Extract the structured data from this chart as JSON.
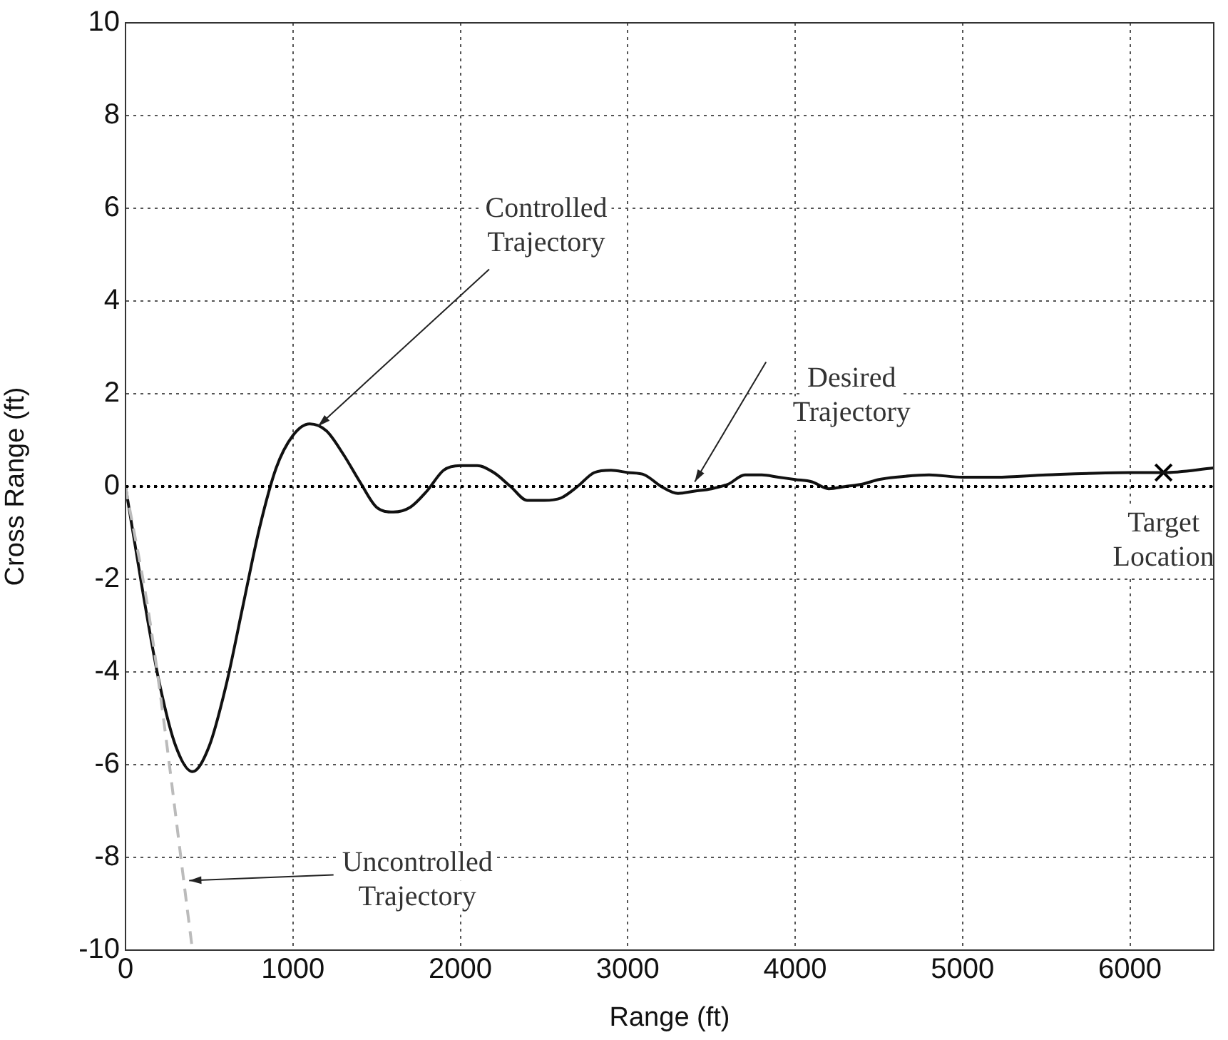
{
  "chart_data": {
    "type": "line",
    "xlabel": "Range (ft)",
    "ylabel": "Cross Range (ft)",
    "xlim": [
      0,
      6500
    ],
    "ylim": [
      -10,
      10
    ],
    "xticks": [
      0,
      1000,
      2000,
      3000,
      4000,
      5000,
      6000
    ],
    "yticks": [
      -10,
      -8,
      -6,
      -4,
      -2,
      0,
      2,
      4,
      6,
      8,
      10
    ],
    "grid": true,
    "legend": false,
    "marker": "none",
    "series": [
      {
        "color": "#000000",
        "line_style": "dotted",
        "x": [
          0,
          6500
        ],
        "values": [
          0,
          0
        ]
      },
      {
        "color": "#bbbbbb",
        "line_style": "dashed",
        "x": [
          0,
          150,
          400
        ],
        "values": [
          0,
          -3,
          -10
        ]
      },
      {
        "color": "#111111",
        "line_style": "solid",
        "x": [
          0,
          100,
          200,
          300,
          400,
          500,
          600,
          700,
          800,
          900,
          1000,
          1100,
          1200,
          1300,
          1400,
          1500,
          1600,
          1700,
          1800,
          1900,
          2000,
          2100,
          2200,
          2300,
          2400,
          2500,
          2600,
          2700,
          2800,
          2900,
          3000,
          3100,
          3200,
          3300,
          3400,
          3500,
          3600,
          3700,
          3800,
          3900,
          4000,
          4100,
          4200,
          4300,
          4400,
          4500,
          4600,
          4800,
          5000,
          5200,
          5500,
          6000,
          6200,
          6500
        ],
        "values": [
          0,
          -2.2,
          -4.2,
          -5.6,
          -6.15,
          -5.6,
          -4.3,
          -2.6,
          -0.9,
          0.4,
          1.1,
          1.35,
          1.2,
          0.7,
          0.1,
          -0.45,
          -0.55,
          -0.45,
          -0.1,
          0.35,
          0.45,
          0.45,
          0.3,
          0,
          -0.3,
          -0.3,
          -0.25,
          0,
          0.3,
          0.35,
          0.3,
          0.25,
          0,
          -0.15,
          -0.1,
          -0.05,
          0.05,
          0.25,
          0.25,
          0.2,
          0.15,
          0.1,
          -0.05,
          0,
          0.05,
          0.15,
          0.2,
          0.25,
          0.2,
          0.2,
          0.25,
          0.3,
          0.3,
          0.4
        ]
      },
      {
        "type": "scatter",
        "color": "#000000",
        "marker": "cross",
        "x": [
          6200
        ],
        "values": [
          0.3
        ]
      }
    ],
    "annotations": [
      {
        "text": "Controlled Trajectory",
        "x": 1150,
        "y": 1.3
      },
      {
        "text": "Desired Trajectory",
        "x": 3400,
        "y": 0.1
      },
      {
        "text": "Uncontrolled Trajectory",
        "x": 380,
        "y": -8.5
      },
      {
        "text": "Target Location",
        "x": 6200,
        "y": 0.3
      }
    ]
  }
}
